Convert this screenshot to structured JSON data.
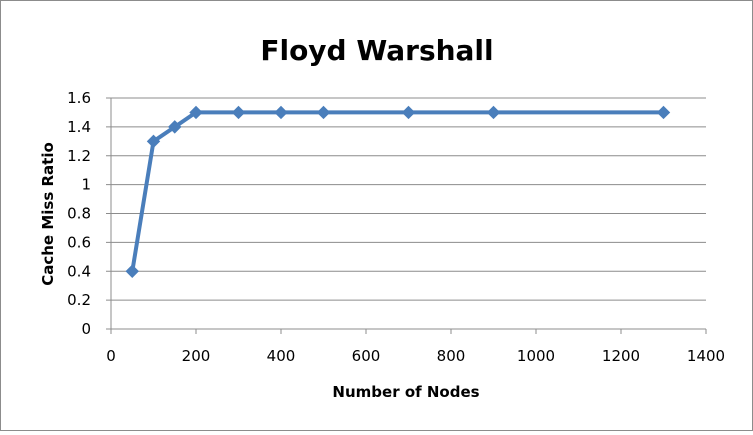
{
  "chart_data": {
    "type": "line",
    "title": "Floyd Warshall",
    "xlabel": "Number of Nodes",
    "ylabel": "Cache Miss Ratio",
    "xlim": [
      0,
      1400
    ],
    "ylim": [
      0,
      1.6
    ],
    "xticks": [
      0,
      200,
      400,
      600,
      800,
      1000,
      1200,
      1400
    ],
    "yticks": [
      0,
      0.2,
      0.4,
      0.6,
      0.8,
      1,
      1.2,
      1.4,
      1.6
    ],
    "xtick_labels": [
      "0",
      "200",
      "400",
      "600",
      "800",
      "1000",
      "1200",
      "1400"
    ],
    "ytick_labels": [
      "0",
      "0.2",
      "0.4",
      "0.6",
      "0.8",
      "1",
      "1.2",
      "1.4",
      "1.6"
    ],
    "grid": "horizontal",
    "legend": "none",
    "series": [
      {
        "color": "#4a7ebb",
        "marker": "diamond",
        "x": [
          50,
          100,
          150,
          200,
          300,
          400,
          500,
          700,
          900,
          1300
        ],
        "y": [
          0.4,
          1.3,
          1.4,
          1.5,
          1.5,
          1.5,
          1.5,
          1.5,
          1.5,
          1.5
        ]
      }
    ]
  }
}
